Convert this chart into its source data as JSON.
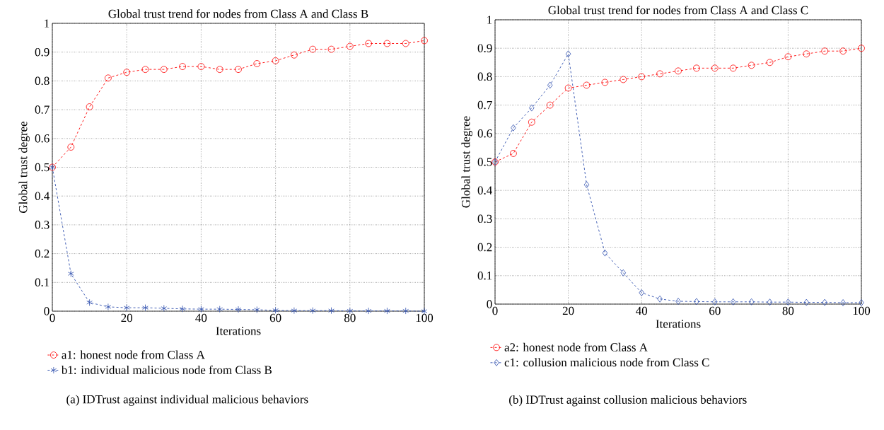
{
  "chart_data": [
    {
      "type": "line",
      "title": "Global trust trend for nodes from Class A and Class B",
      "xlabel": "Iterations",
      "ylabel": "Global trust degree",
      "x": [
        0,
        5,
        10,
        15,
        20,
        25,
        30,
        35,
        40,
        45,
        50,
        55,
        60,
        65,
        70,
        75,
        80,
        85,
        90,
        95,
        100
      ],
      "series": [
        {
          "name": "a1: honest node from Class A",
          "color": "#ff0000",
          "marker": "circle",
          "values": [
            0.5,
            0.57,
            0.71,
            0.81,
            0.83,
            0.84,
            0.84,
            0.85,
            0.85,
            0.84,
            0.84,
            0.86,
            0.87,
            0.89,
            0.91,
            0.91,
            0.92,
            0.93,
            0.93,
            0.93,
            0.94
          ]
        },
        {
          "name": "b1: individual malicious node from Class B",
          "color": "#2f4fae",
          "marker": "cross",
          "values": [
            0.5,
            0.13,
            0.03,
            0.015,
            0.012,
            0.012,
            0.01,
            0.008,
            0.007,
            0.007,
            0.006,
            0.005,
            0.003,
            0.002,
            0.002,
            0.002,
            0.001,
            0.001,
            0.001,
            0.001,
            0.0
          ]
        }
      ],
      "xlim": [
        0,
        100
      ],
      "ylim": [
        0,
        1
      ],
      "xticks": [
        0,
        20,
        40,
        60,
        80,
        100
      ],
      "yticks": [
        0,
        0.1,
        0.2,
        0.3,
        0.4,
        0.5,
        0.6,
        0.7,
        0.8,
        0.9,
        1
      ],
      "grid": true,
      "legend": "bottom",
      "line_style": "dashed",
      "annotations": [
        "(a)  IDTrust against individual malicious behaviors"
      ]
    },
    {
      "type": "line",
      "title": "Global trust trend for nodes from Class A and Class C",
      "xlabel": "Iterations",
      "ylabel": "Global trust degree",
      "x": [
        0,
        5,
        10,
        15,
        20,
        25,
        30,
        35,
        40,
        45,
        50,
        55,
        60,
        65,
        70,
        75,
        80,
        85,
        90,
        95,
        100
      ],
      "series": [
        {
          "name": "a2: honest node from Class A",
          "color": "#ff0000",
          "marker": "circle",
          "values": [
            0.5,
            0.53,
            0.64,
            0.7,
            0.76,
            0.77,
            0.78,
            0.79,
            0.8,
            0.81,
            0.82,
            0.83,
            0.83,
            0.83,
            0.84,
            0.85,
            0.87,
            0.88,
            0.89,
            0.89,
            0.9
          ]
        },
        {
          "name": "c1: collusion malicious node from Class C",
          "color": "#2f4fae",
          "marker": "diamond",
          "values": [
            0.5,
            0.62,
            0.69,
            0.77,
            0.88,
            0.42,
            0.18,
            0.11,
            0.04,
            0.018,
            0.01,
            0.009,
            0.008,
            0.008,
            0.008,
            0.007,
            0.007,
            0.006,
            0.006,
            0.005,
            0.005
          ]
        }
      ],
      "xlim": [
        0,
        100
      ],
      "ylim": [
        0,
        1
      ],
      "xticks": [
        0,
        20,
        40,
        60,
        80,
        100
      ],
      "yticks": [
        0,
        0.1,
        0.2,
        0.3,
        0.4,
        0.5,
        0.6,
        0.7,
        0.8,
        0.9,
        1
      ],
      "grid": true,
      "legend": "bottom",
      "line_style": "dashed",
      "annotations": [
        "(b)  IDTrust against collusion malicious behaviors"
      ]
    }
  ]
}
